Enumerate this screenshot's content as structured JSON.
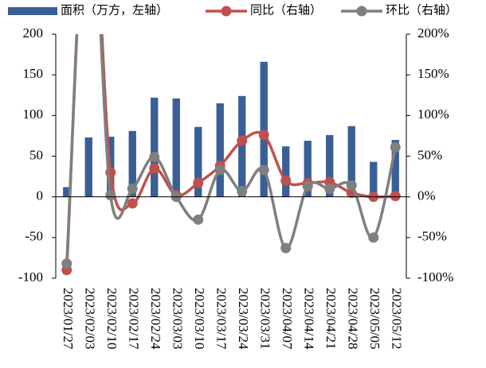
{
  "chart_data": {
    "type": "bar-line",
    "categories": [
      "2023/01/27",
      "2023/02/03",
      "2023/02/10",
      "2023/02/17",
      "2023/02/24",
      "2023/03/03",
      "2023/03/10",
      "2023/03/17",
      "2023/03/24",
      "2023/03/31",
      "2023/04/07",
      "2023/04/14",
      "2023/04/21",
      "2023/04/28",
      "2023/05/05",
      "2023/05/12"
    ],
    "series": [
      {
        "name": "面积（万方，左轴）",
        "color": "#3a5f96",
        "type": "bar",
        "values": [
          12,
          73,
          74,
          81,
          122,
          121,
          86,
          115,
          124,
          166,
          62,
          69,
          76,
          87,
          43,
          70
        ]
      },
      {
        "name": "同比（右轴）",
        "color": "#c0504d",
        "type": "line",
        "axis": "y2",
        "values": [
          -90,
          420,
          30,
          -8,
          35,
          2,
          17,
          38,
          69,
          76,
          20,
          17,
          18,
          5,
          0,
          1
        ]
      },
      {
        "name": "环比（右轴）",
        "color": "#7f7f7f",
        "type": "line",
        "axis": "y2",
        "values": [
          -82,
          400,
          2,
          10,
          49,
          0,
          -28,
          33,
          7,
          33,
          -63,
          13,
          10,
          14,
          -50,
          61
        ]
      }
    ],
    "ylim": [
      -100,
      200
    ],
    "yticks": [
      200,
      150,
      100,
      50,
      0,
      -50,
      -100
    ],
    "y2lim": [
      -100,
      200
    ],
    "y2ticks": [
      {
        "value": 200,
        "label": "200%"
      },
      {
        "value": 150,
        "label": "150%"
      },
      {
        "value": 100,
        "label": "100%"
      },
      {
        "value": 50,
        "label": "50%"
      },
      {
        "value": 0,
        "label": "0%"
      },
      {
        "value": -50,
        "label": "-50%"
      },
      {
        "value": -100,
        "label": "-100%"
      }
    ],
    "grid": false
  }
}
